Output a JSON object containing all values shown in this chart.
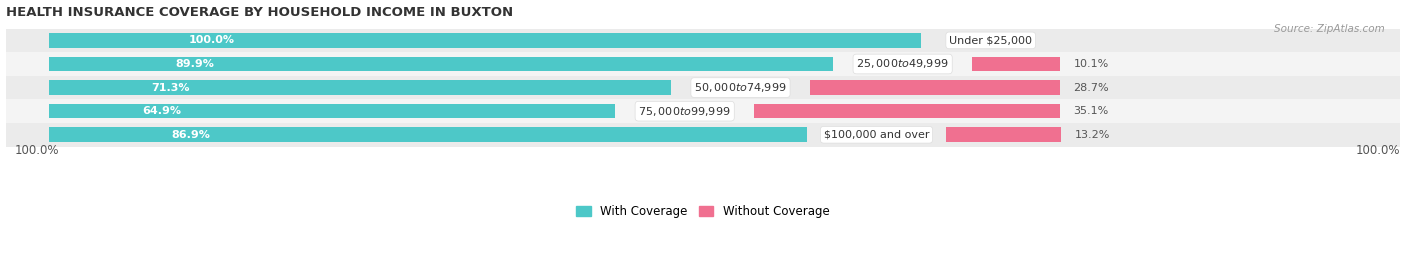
{
  "title": "HEALTH INSURANCE COVERAGE BY HOUSEHOLD INCOME IN BUXTON",
  "source": "Source: ZipAtlas.com",
  "categories": [
    "Under $25,000",
    "$25,000 to $49,999",
    "$50,000 to $74,999",
    "$75,000 to $99,999",
    "$100,000 and over"
  ],
  "with_coverage": [
    100.0,
    89.9,
    71.3,
    64.9,
    86.9
  ],
  "without_coverage": [
    0.0,
    10.1,
    28.7,
    35.1,
    13.2
  ],
  "color_with": "#4DC8C8",
  "color_without": "#F07090",
  "bar_height": 0.62,
  "row_colors": [
    "#EBEBEB",
    "#F4F4F4",
    "#EBEBEB",
    "#F4F4F4",
    "#EBEBEB"
  ],
  "legend_labels": [
    "With Coverage",
    "Without Coverage"
  ],
  "xlim_left": -5,
  "xlim_right": 155,
  "scale": 1.0
}
